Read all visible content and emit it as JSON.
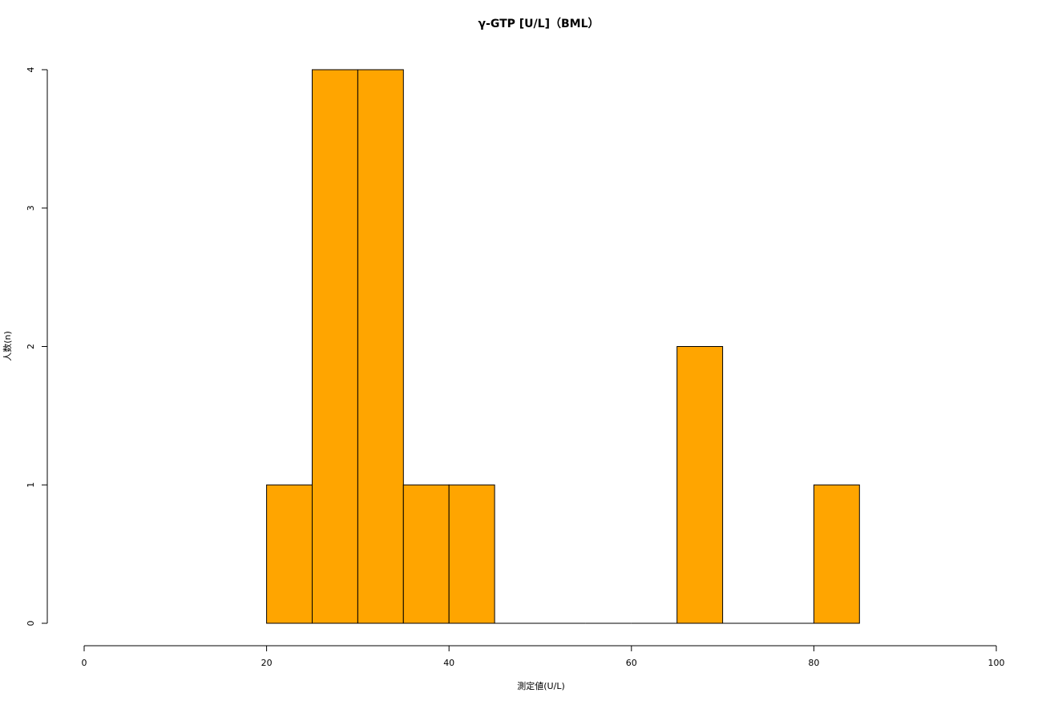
{
  "chart_data": {
    "type": "histogram",
    "title": "γ-GTP [U/L]（BML）",
    "x_label": "測定値(U/L)",
    "y_label": "人数(n)",
    "bins": [
      20,
      25,
      30,
      35,
      40,
      45,
      50,
      55,
      60,
      65,
      70,
      75,
      80,
      85
    ],
    "values": [
      1,
      4,
      4,
      1,
      1,
      0,
      0,
      0,
      0,
      2,
      0,
      0,
      1
    ],
    "color": "#ffa500",
    "xlim": [
      0,
      100
    ],
    "xticks": [
      0,
      20,
      40,
      60,
      80,
      100
    ],
    "ylim": [
      0,
      4
    ],
    "yticks": [
      0,
      1,
      2,
      3,
      4
    ]
  }
}
